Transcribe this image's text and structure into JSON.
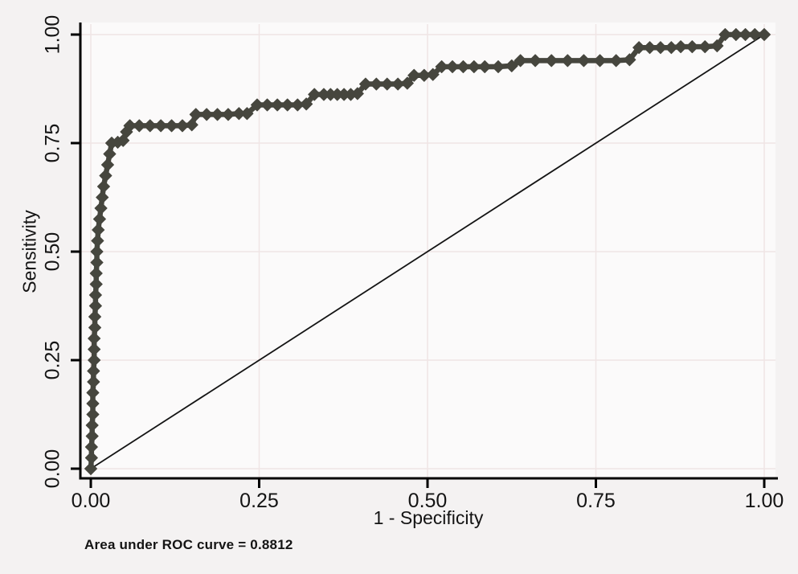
{
  "figure": {
    "background_color": "#f4f2f2",
    "plot_background_color": "#fbfafa"
  },
  "chart_data": {
    "type": "line",
    "subtype": "roc-curve",
    "title": "",
    "xlabel": "1 - Specificity",
    "ylabel": "Sensitivity",
    "caption": "Area under ROC curve = 0.8812",
    "auc": 0.8812,
    "grid": true,
    "legend_position": "none",
    "colors": {
      "curve": "#46463e",
      "reference_line": "#141414",
      "axis": "#000000",
      "gridline": "#f0e5e5",
      "text": "#141414"
    },
    "x_axis": {
      "label": "1 - Specificity",
      "range": [
        0,
        1
      ],
      "tick_values": [
        0,
        0.25,
        0.5,
        0.75,
        1
      ],
      "tick_labels": [
        "0.00",
        "0.25",
        "0.50",
        "0.75",
        "1.00"
      ]
    },
    "y_axis": {
      "label": "Sensitivity",
      "range": [
        0,
        1
      ],
      "tick_values": [
        0,
        0.25,
        0.5,
        0.75,
        1
      ],
      "tick_labels": [
        "0.00",
        "0.25",
        "0.50",
        "0.75",
        "1.00"
      ]
    },
    "reference_line": {
      "name": "chance-diagonal",
      "from": [
        0,
        0
      ],
      "to": [
        1,
        1
      ]
    },
    "series": [
      {
        "name": "ROC curve",
        "marker": "diamond",
        "color": "#46463e",
        "points": [
          [
            0.0,
            0.0
          ],
          [
            0.001,
            0.025
          ],
          [
            0.001,
            0.05
          ],
          [
            0.002,
            0.075
          ],
          [
            0.002,
            0.1
          ],
          [
            0.003,
            0.125
          ],
          [
            0.003,
            0.15
          ],
          [
            0.003,
            0.175
          ],
          [
            0.004,
            0.2
          ],
          [
            0.004,
            0.225
          ],
          [
            0.005,
            0.25
          ],
          [
            0.005,
            0.275
          ],
          [
            0.005,
            0.3
          ],
          [
            0.006,
            0.325
          ],
          [
            0.006,
            0.35
          ],
          [
            0.007,
            0.375
          ],
          [
            0.007,
            0.4
          ],
          [
            0.008,
            0.425
          ],
          [
            0.008,
            0.45
          ],
          [
            0.009,
            0.475
          ],
          [
            0.009,
            0.5
          ],
          [
            0.01,
            0.525
          ],
          [
            0.011,
            0.55
          ],
          [
            0.013,
            0.575
          ],
          [
            0.015,
            0.6
          ],
          [
            0.017,
            0.625
          ],
          [
            0.019,
            0.65
          ],
          [
            0.022,
            0.675
          ],
          [
            0.025,
            0.7
          ],
          [
            0.028,
            0.725
          ],
          [
            0.031,
            0.75
          ],
          [
            0.04,
            0.752
          ],
          [
            0.048,
            0.756
          ],
          [
            0.053,
            0.776
          ],
          [
            0.058,
            0.79
          ],
          [
            0.072,
            0.79
          ],
          [
            0.088,
            0.79
          ],
          [
            0.104,
            0.79
          ],
          [
            0.12,
            0.79
          ],
          [
            0.136,
            0.79
          ],
          [
            0.15,
            0.792
          ],
          [
            0.156,
            0.816
          ],
          [
            0.172,
            0.816
          ],
          [
            0.188,
            0.816
          ],
          [
            0.204,
            0.816
          ],
          [
            0.22,
            0.818
          ],
          [
            0.232,
            0.818
          ],
          [
            0.247,
            0.838
          ],
          [
            0.262,
            0.838
          ],
          [
            0.277,
            0.838
          ],
          [
            0.292,
            0.838
          ],
          [
            0.307,
            0.838
          ],
          [
            0.32,
            0.84
          ],
          [
            0.332,
            0.862
          ],
          [
            0.346,
            0.862
          ],
          [
            0.356,
            0.862
          ],
          [
            0.366,
            0.862
          ],
          [
            0.376,
            0.862
          ],
          [
            0.386,
            0.862
          ],
          [
            0.396,
            0.864
          ],
          [
            0.408,
            0.886
          ],
          [
            0.424,
            0.886
          ],
          [
            0.44,
            0.886
          ],
          [
            0.456,
            0.886
          ],
          [
            0.47,
            0.888
          ],
          [
            0.48,
            0.906
          ],
          [
            0.495,
            0.906
          ],
          [
            0.508,
            0.908
          ],
          [
            0.521,
            0.926
          ],
          [
            0.537,
            0.926
          ],
          [
            0.553,
            0.926
          ],
          [
            0.569,
            0.926
          ],
          [
            0.585,
            0.926
          ],
          [
            0.605,
            0.926
          ],
          [
            0.625,
            0.928
          ],
          [
            0.638,
            0.94
          ],
          [
            0.66,
            0.94
          ],
          [
            0.684,
            0.94
          ],
          [
            0.708,
            0.94
          ],
          [
            0.732,
            0.94
          ],
          [
            0.756,
            0.94
          ],
          [
            0.78,
            0.94
          ],
          [
            0.8,
            0.942
          ],
          [
            0.814,
            0.97
          ],
          [
            0.83,
            0.97
          ],
          [
            0.846,
            0.97
          ],
          [
            0.862,
            0.97
          ],
          [
            0.876,
            0.972
          ],
          [
            0.893,
            0.972
          ],
          [
            0.912,
            0.972
          ],
          [
            0.93,
            0.974
          ],
          [
            0.942,
            1.0
          ],
          [
            0.958,
            1.0
          ],
          [
            0.972,
            1.0
          ],
          [
            0.986,
            1.0
          ],
          [
            1.0,
            1.0
          ]
        ]
      }
    ]
  }
}
